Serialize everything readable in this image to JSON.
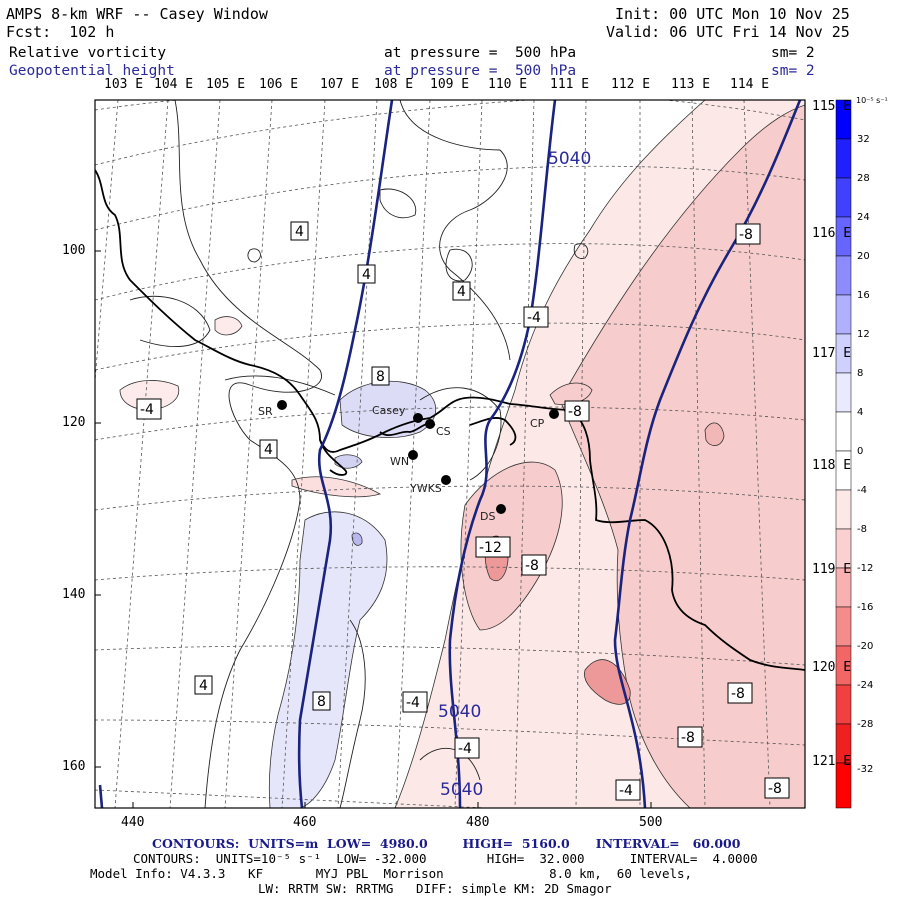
{
  "header": {
    "title": "AMPS 8-km WRF -- Casey Window",
    "forecast": "Fcst:  102 h",
    "init": "Init: 00 UTC Mon 10 Nov 25",
    "valid": "Valid: 06 UTC Fri 14 Nov 25",
    "field1_name": "Relative vorticity",
    "field1_level": "at pressure =  500 hPa",
    "field1_sm": "sm= 2",
    "field2_name": "Geopotential height",
    "field2_level": "at pressure =  500 hPa",
    "field2_sm": "sm= 2"
  },
  "map": {
    "lon_labels_top": [
      "103 E",
      "104 E",
      "105 E",
      "106 E",
      "107 E",
      "108 E",
      "109 E",
      "110 E",
      "111 E",
      "112 E",
      "113 E",
      "114 E"
    ],
    "lon_labels_right": [
      "115 E",
      "116 E",
      "117 E",
      "118 E",
      "119 E",
      "120 E",
      "121 E"
    ],
    "x_ticks": [
      "440",
      "460",
      "480",
      "500"
    ],
    "y_ticks": [
      "100",
      "120",
      "140",
      "160"
    ],
    "stations": [
      {
        "name": "SR"
      },
      {
        "name": "Casey"
      },
      {
        "name": "CS"
      },
      {
        "name": "WN"
      },
      {
        "name": "YWKS"
      },
      {
        "name": "DS"
      },
      {
        "name": "CP"
      }
    ],
    "height_labels": [
      "5040",
      "5040",
      "5040"
    ],
    "vorticity_labels": [
      "4",
      "4",
      "4",
      "-4",
      "8",
      "-4",
      "4",
      "-8",
      "-8",
      "-12",
      "-8",
      "4",
      "8",
      "-4",
      "-4",
      "-8",
      "-8",
      "-4",
      "-8"
    ]
  },
  "colorbar": {
    "unit_label": "10⁻⁵ s⁻¹",
    "tick_labels": [
      "32",
      "28",
      "24",
      "20",
      "16",
      "12",
      "8",
      "4",
      "0",
      "-4",
      "-8",
      "-12",
      "-16",
      "-20",
      "-24",
      "-28",
      "-32"
    ],
    "colors": {
      "positive_max": "#0000ff",
      "positive_min": "#f2f2ff",
      "neutral": "#ffffff",
      "negative_min": "#fff2f2",
      "negative_max": "#ff0000"
    }
  },
  "footer": {
    "line1": "CONTOURS:  UNITS=m  LOW=  4980.0        HIGH=  5160.0      INTERVAL=   60.000",
    "line2": "CONTOURS:  UNITS=10⁻⁵ s⁻¹  LOW= -32.000        HIGH=  32.000      INTERVAL=  4.0000",
    "line3": "Model Info: V4.3.3   KF       MYJ PBL  Morrison              8.0 km,  60 levels,",
    "line4": "LW: RRTM SW: RRTMG   DIFF: simple KM: 2D Smagor"
  }
}
